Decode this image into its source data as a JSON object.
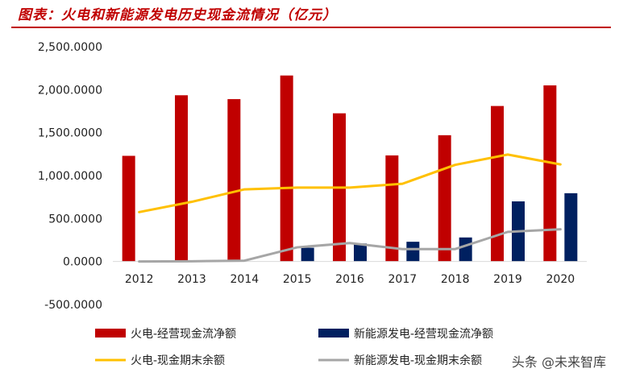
{
  "title": "图表：火电和新能源发电历史现金流情况（亿元）",
  "watermark": "头条 @未来智库",
  "colors": {
    "thermal_cf": "#c00000",
    "renew_cf": "#002060",
    "thermal_cash": "#ffc000",
    "renew_cash": "#a6a6a6",
    "title": "#c00000"
  },
  "chart_data": {
    "type": "bar",
    "title": "图表：火电和新能源发电历史现金流情况（亿元）",
    "categories": [
      "2012",
      "2013",
      "2014",
      "2015",
      "2016",
      "2017",
      "2018",
      "2019",
      "2020"
    ],
    "ylim": [
      -500,
      2500
    ],
    "ytick_values": [
      -500,
      0,
      500,
      1000,
      1500,
      2000,
      2500
    ],
    "ytick_labels": [
      "-500.0000",
      "0.0000",
      "500.0000",
      "1,000.0000",
      "1,500.0000",
      "2,000.0000",
      "2,500.0000"
    ],
    "grid": false,
    "legend_position": "bottom",
    "series": [
      {
        "name": "火电-经营现金流净额",
        "kind": "bar",
        "color": "#c00000",
        "values": [
          1230,
          1935,
          1890,
          2165,
          1725,
          1235,
          1470,
          1810,
          2050
        ]
      },
      {
        "name": "新能源发电-经营现金流净额",
        "kind": "bar",
        "color": "#002060",
        "values": [
          0,
          0,
          0,
          160,
          210,
          230,
          280,
          700,
          795
        ]
      },
      {
        "name": "火电-现金期末余额",
        "kind": "line",
        "color": "#ffc000",
        "values": [
          575,
          695,
          840,
          860,
          860,
          905,
          1125,
          1245,
          1130
        ]
      },
      {
        "name": "新能源发电-现金期末余额",
        "kind": "line",
        "color": "#a6a6a6",
        "values": [
          0,
          3,
          10,
          165,
          215,
          145,
          145,
          345,
          375
        ]
      }
    ]
  }
}
